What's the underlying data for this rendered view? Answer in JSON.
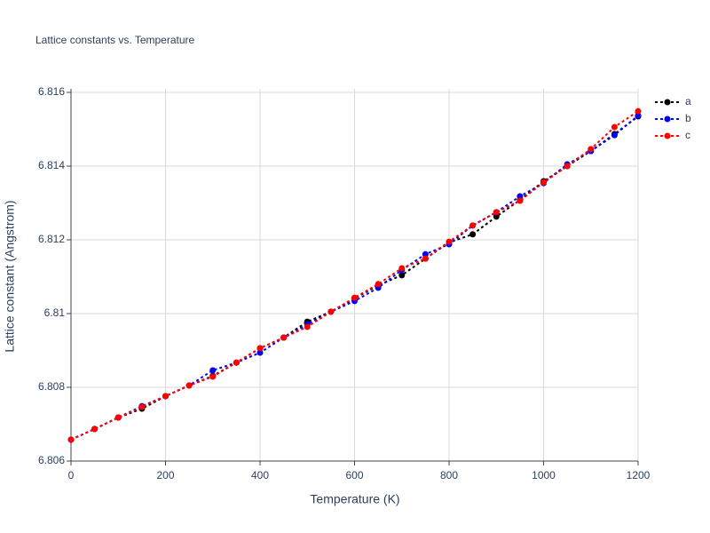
{
  "chart_data": {
    "type": "line",
    "title": "Lattice constants vs. Temperature",
    "x_label": "Temperature (K)",
    "y_label": "Lattice constant (Angstrom)",
    "x": [
      0,
      50,
      100,
      150,
      200,
      250,
      300,
      350,
      400,
      450,
      500,
      550,
      600,
      650,
      700,
      750,
      800,
      850,
      900,
      950,
      1000,
      1050,
      1100,
      1150,
      1200
    ],
    "series": [
      {
        "name": "a",
        "color": "#000000",
        "values": [
          6.80658,
          6.80687,
          6.80718,
          6.80742,
          6.80776,
          6.80805,
          6.80831,
          6.80867,
          6.80906,
          6.80935,
          6.80978,
          6.81005,
          6.81041,
          6.81077,
          6.81104,
          6.81149,
          6.81193,
          6.81215,
          6.81263,
          6.81308,
          6.81359,
          6.814,
          6.81441,
          6.81487,
          6.81535
        ]
      },
      {
        "name": "b",
        "color": "#0000ff",
        "values": [
          6.80658,
          6.80687,
          6.80718,
          6.80749,
          6.80776,
          6.80805,
          6.80846,
          6.80867,
          6.80894,
          6.80935,
          6.80971,
          6.81005,
          6.81034,
          6.8107,
          6.81118,
          6.81161,
          6.81188,
          6.81239,
          6.81275,
          6.81318,
          6.81354,
          6.81405,
          6.81441,
          6.81484,
          6.81537
        ]
      },
      {
        "name": "c",
        "color": "#ff0000",
        "values": [
          6.80658,
          6.80687,
          6.80718,
          6.80747,
          6.80776,
          6.80805,
          6.80829,
          6.80867,
          6.80906,
          6.80935,
          6.80964,
          6.81005,
          6.81043,
          6.8108,
          6.81123,
          6.81149,
          6.81195,
          6.81239,
          6.81275,
          6.81306,
          6.81356,
          6.814,
          6.81446,
          6.81506,
          6.81549
        ]
      }
    ],
    "xlim": [
      0,
      1200
    ],
    "xticks": [
      0,
      200,
      400,
      600,
      800,
      1000,
      1200
    ],
    "ylim": [
      6.806,
      6.816
    ],
    "yticks": [
      6.806,
      6.808,
      6.81,
      6.812,
      6.814,
      6.816
    ],
    "grid": true,
    "legend": "right"
  }
}
